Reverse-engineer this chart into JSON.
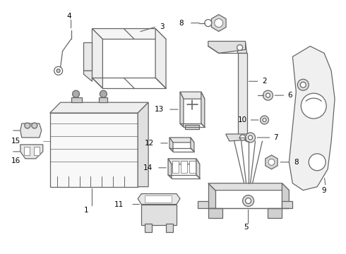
{
  "background_color": "#ffffff",
  "line_color": "#666666",
  "label_color": "#000000",
  "figsize": [
    4.9,
    3.6
  ],
  "dpi": 100,
  "label_fontsize": 7.5,
  "lw": 0.9
}
